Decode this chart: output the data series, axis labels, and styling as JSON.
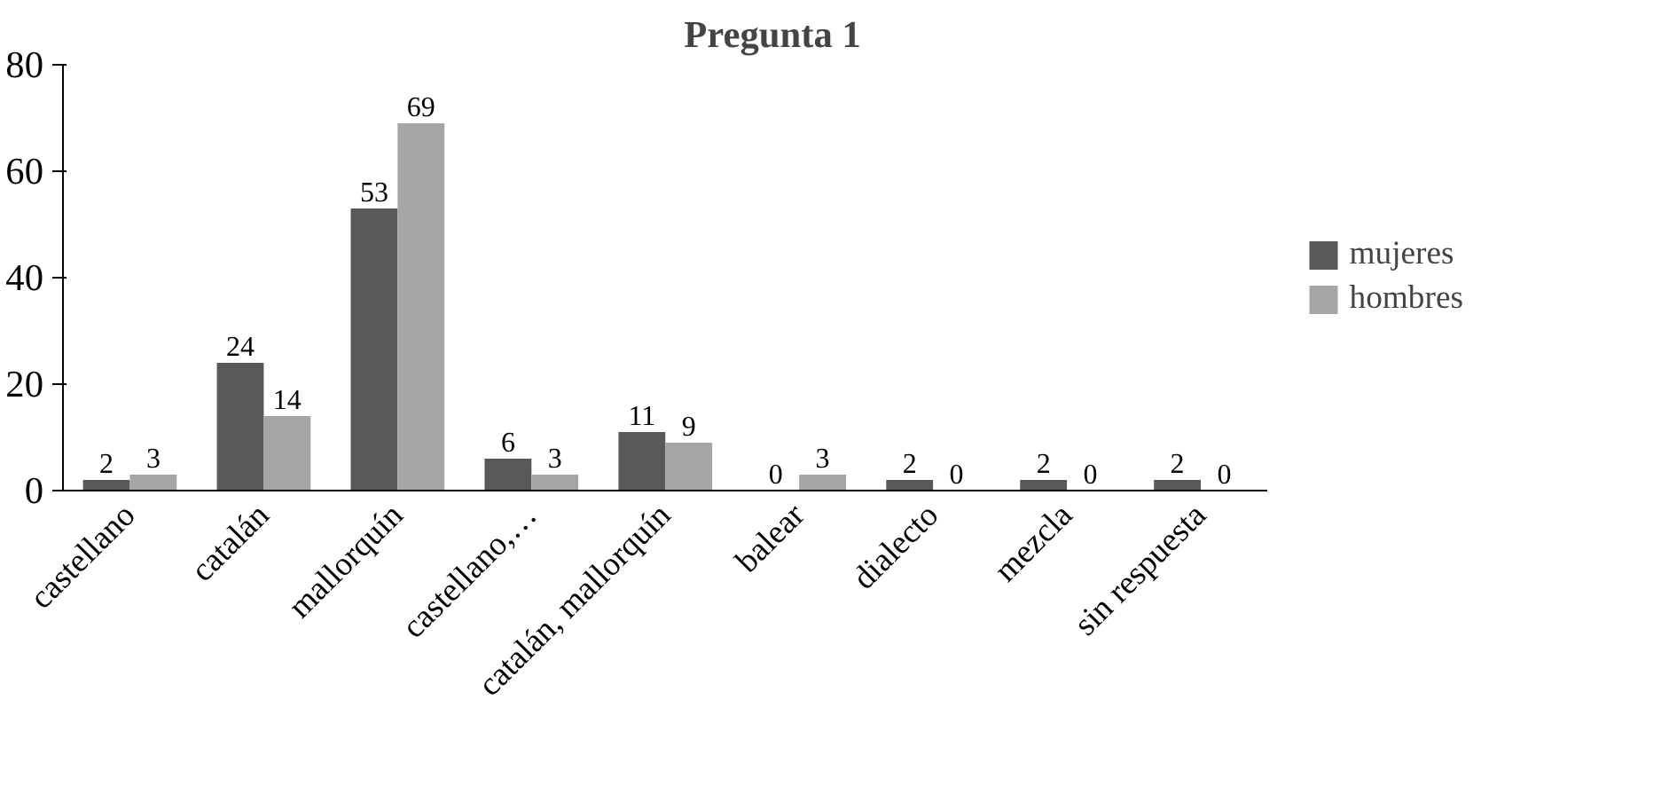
{
  "chart_data": {
    "type": "bar",
    "title": "Pregunta 1",
    "categories": [
      "castellano",
      "catalán",
      "mallorquín",
      "castellano,…",
      "catalán, mallorquín",
      "balear",
      "dialecto",
      "mezcla",
      "sin respuesta"
    ],
    "series": [
      {
        "name": "mujeres",
        "color": "#595959",
        "values": [
          2,
          24,
          53,
          6,
          11,
          0,
          2,
          2,
          2
        ]
      },
      {
        "name": "hombres",
        "color": "#a6a6a6",
        "values": [
          3,
          14,
          69,
          3,
          9,
          3,
          0,
          0,
          0
        ]
      }
    ],
    "ylim": [
      0,
      80
    ],
    "yticks": [
      0,
      20,
      40,
      60,
      80
    ],
    "grid": false,
    "legend": "right",
    "data_labels": true
  }
}
